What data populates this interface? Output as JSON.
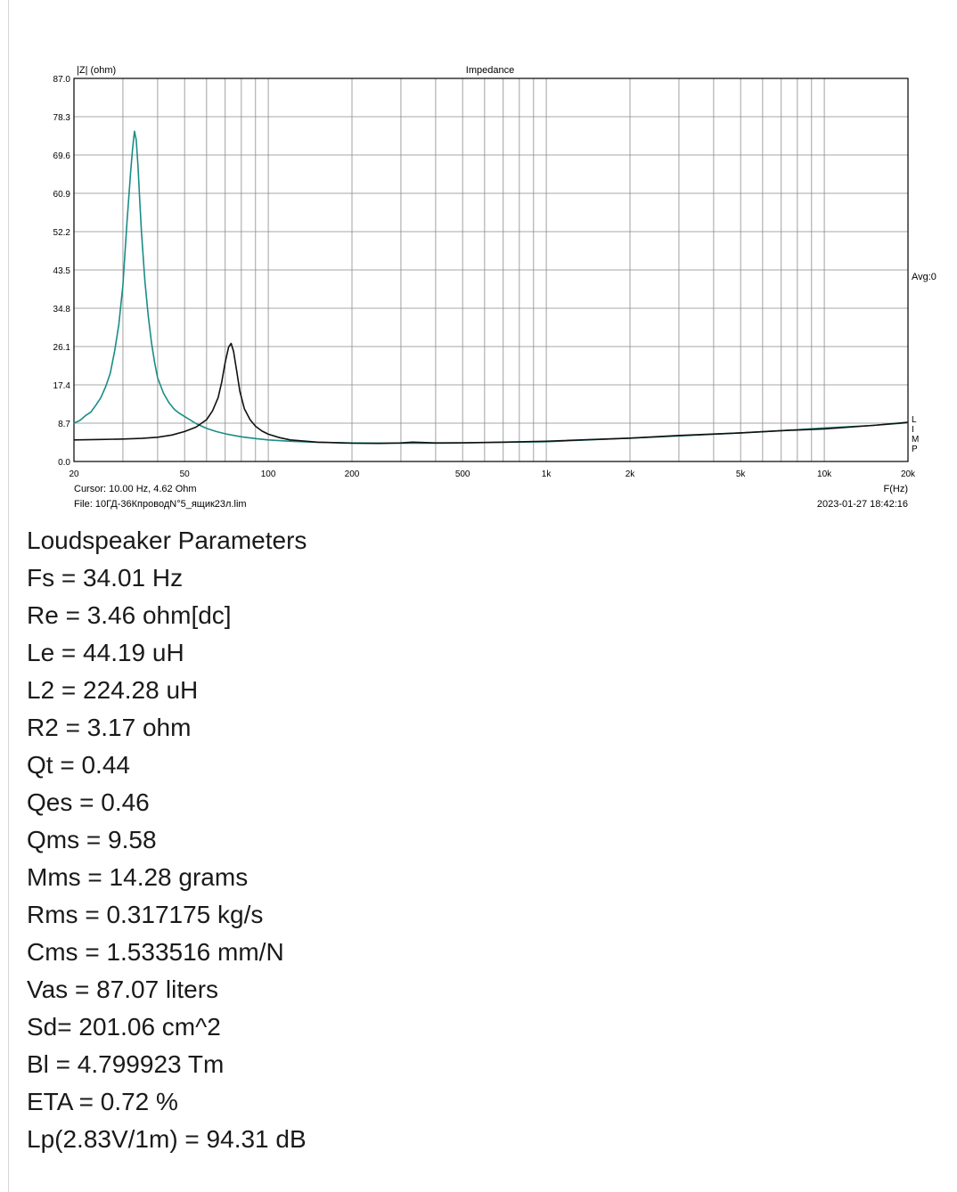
{
  "chart_data": {
    "type": "line",
    "title": "Impedance",
    "ylabel": "|Z| (ohm)",
    "xlabel": "F(Hz)",
    "x_scale": "log",
    "xlim": [
      20,
      20000
    ],
    "ylim": [
      0,
      87
    ],
    "grid": true,
    "y_ticks": [
      "0.0",
      "8.7",
      "17.4",
      "26.1",
      "34.8",
      "43.5",
      "52.2",
      "60.9",
      "69.6",
      "78.3",
      "87.0"
    ],
    "x_tick_labels": [
      {
        "v": 20,
        "t": "20"
      },
      {
        "v": 50,
        "t": "50"
      },
      {
        "v": 100,
        "t": "100"
      },
      {
        "v": 200,
        "t": "200"
      },
      {
        "v": 500,
        "t": "500"
      },
      {
        "v": 1000,
        "t": "1k"
      },
      {
        "v": 2000,
        "t": "2k"
      },
      {
        "v": 5000,
        "t": "5k"
      },
      {
        "v": 10000,
        "t": "10k"
      },
      {
        "v": 20000,
        "t": "20k"
      }
    ],
    "right_label": "Avg:0",
    "side_marks": [
      "L",
      "I",
      "M",
      "P"
    ],
    "cursor_text": "Cursor: 10.00 Hz, 4.62 Ohm",
    "file_text": "File: 10ГД-36КпроводN°5_ящик23л.lim",
    "date_text": "2023-01-27 18:42:16",
    "series": [
      {
        "color": "#1a8c86",
        "x": [
          20,
          21,
          22,
          23,
          24,
          25,
          26,
          27,
          28,
          29,
          30,
          31,
          32,
          32.5,
          33,
          33.5,
          34,
          34.5,
          35,
          36,
          37,
          38,
          39,
          40,
          42,
          44,
          46,
          48,
          50,
          55,
          60,
          65,
          70,
          80,
          90,
          100,
          120,
          150,
          200,
          300,
          400,
          500,
          700,
          1000,
          2000,
          3000,
          5000,
          7000,
          10000,
          15000,
          20000
        ],
        "y": [
          8.7,
          9.3,
          10.4,
          11.2,
          12.8,
          14.5,
          17.0,
          20.0,
          25.0,
          31.0,
          40.0,
          54.0,
          66.0,
          71.0,
          75.0,
          73.0,
          67.0,
          59.0,
          52.0,
          41.0,
          33.0,
          27.0,
          22.5,
          19.0,
          15.5,
          13.3,
          11.8,
          10.9,
          10.2,
          8.6,
          7.5,
          6.8,
          6.3,
          5.6,
          5.2,
          4.9,
          4.6,
          4.35,
          4.2,
          4.15,
          4.15,
          4.2,
          4.35,
          4.5,
          5.3,
          5.8,
          6.5,
          7.0,
          7.6,
          8.2,
          8.8
        ]
      },
      {
        "color": "#111111",
        "x": [
          20,
          25,
          30,
          35,
          40,
          45,
          50,
          55,
          60,
          63,
          66,
          68,
          70,
          72,
          73.5,
          75,
          77,
          79,
          82,
          86,
          90,
          95,
          100,
          110,
          120,
          150,
          200,
          250,
          300,
          330,
          360,
          400,
          500,
          700,
          1000,
          2000,
          3000,
          5000,
          7000,
          10000,
          15000,
          20000
        ],
        "y": [
          4.9,
          5.0,
          5.1,
          5.25,
          5.5,
          6.0,
          6.8,
          7.8,
          9.5,
          11.5,
          14.5,
          18.0,
          22.5,
          26.0,
          26.8,
          25.0,
          20.5,
          16.0,
          12.0,
          9.5,
          8.0,
          6.9,
          6.2,
          5.4,
          4.9,
          4.4,
          4.15,
          4.1,
          4.2,
          4.4,
          4.3,
          4.2,
          4.25,
          4.4,
          4.6,
          5.3,
          5.9,
          6.5,
          7.0,
          7.4,
          8.2,
          8.9
        ]
      }
    ]
  },
  "params": {
    "heading": "Loudspeaker Parameters",
    "lines": [
      "Fs = 34.01 Hz",
      "Re = 3.46 ohm[dc]",
      "Le = 44.19 uH",
      "L2 = 224.28 uH",
      "R2 = 3.17 ohm",
      "Qt = 0.44",
      "Qes = 0.46",
      "Qms = 9.58",
      "Mms = 14.28 grams",
      "Rms = 0.317175 kg/s",
      "Cms = 1.533516 mm/N",
      "Vas = 87.07 liters",
      "Sd= 201.06 cm^2",
      "Bl = 4.799923 Tm",
      "ETA = 0.72 %",
      "Lp(2.83V/1m) = 94.31 dB"
    ]
  }
}
